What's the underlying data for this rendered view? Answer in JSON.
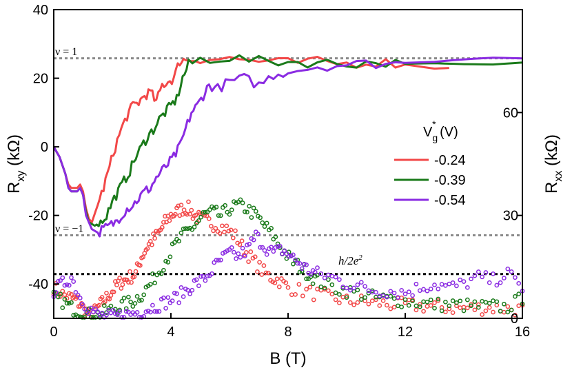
{
  "chart_data": {
    "type": "line+scatter",
    "xlabel": "B (T)",
    "xlim": [
      0,
      16
    ],
    "xticks": [
      "0",
      "4",
      "8",
      "12",
      "16"
    ],
    "ylabel_left": "Rxy (kΩ)",
    "ylabel_left_main": "R",
    "ylabel_left_sub": "xy",
    "ylabel_left_unit": " (kΩ)",
    "ylim_left": [
      -50,
      40
    ],
    "yticks_left": [
      "-40",
      "-20",
      "0",
      "20",
      "40"
    ],
    "ylabel_right": "Rxx (kΩ)",
    "ylabel_right_main": "R",
    "ylabel_right_sub": "xx",
    "ylabel_right_unit": " (kΩ)",
    "ylim_right": [
      0,
      90
    ],
    "yticks_right": [
      "0",
      "30",
      "60"
    ],
    "legend": {
      "title": "Vg* (V)",
      "title_main": "V",
      "title_sub": "g",
      "title_sup": "*",
      "title_unit": " (V)",
      "position": "right-center"
    },
    "annotations": {
      "nu_plus": "ν = 1",
      "nu_minus": "ν = −1",
      "h2e2_main": "h/2e",
      "h2e2_sup": "2"
    },
    "reference_lines": [
      {
        "label": "ν = 1",
        "axis": "left",
        "y": 25.8,
        "color": "#8a8a8a"
      },
      {
        "label": "ν = −1",
        "axis": "left",
        "y": -25.8,
        "color": "#8a8a8a"
      },
      {
        "label": "h/2e2",
        "axis": "right",
        "y": 12.9,
        "color": "#000000"
      }
    ],
    "series": [
      {
        "name": "-0.24",
        "color": "#f24848",
        "rxy_line": {
          "x": [
            0,
            0.2,
            0.4,
            0.5,
            0.6,
            0.8,
            0.9,
            1.0,
            1.1,
            1.2,
            1.3,
            1.5,
            1.7,
            1.9,
            2.1,
            2.3,
            2.5,
            2.7,
            2.9,
            3.1,
            3.3,
            3.5,
            3.7,
            3.9,
            4.1,
            4.3,
            4.5,
            5,
            6,
            7,
            8,
            9,
            10,
            11,
            12,
            13,
            13.5
          ],
          "y": [
            0,
            -3,
            -8,
            -11,
            -12,
            -12,
            -11,
            -13,
            -18,
            -21,
            -22,
            -17,
            -12,
            -6,
            0,
            5,
            9,
            12,
            13,
            15,
            16,
            13,
            18,
            19,
            20,
            25,
            25.5,
            25.7,
            25.8,
            25,
            24.5,
            24.8,
            24.2,
            24.8,
            24,
            22.8,
            23
          ]
        },
        "rxx_points": {
          "x": [
            0,
            0.3,
            0.6,
            0.8,
            1.0,
            1.2,
            1.4,
            1.6,
            1.8,
            2.0,
            2.2,
            2.4,
            2.6,
            2.8,
            3.0,
            3.2,
            3.4,
            3.6,
            3.8,
            4.0,
            4.2,
            4.4,
            4.6,
            4.8,
            5.0,
            5.3,
            5.6,
            5.9,
            6.2,
            6.5,
            6.8,
            7.1,
            7.4,
            7.7,
            8.0,
            8.5,
            9,
            9.5,
            10,
            10.5,
            11,
            11.5,
            12,
            12.5,
            13,
            13.5,
            14,
            14.5,
            15,
            15.5,
            16
          ],
          "y": [
            9,
            7,
            6,
            5,
            3,
            1,
            2,
            4,
            6,
            8,
            10,
            11,
            12,
            13,
            18,
            21,
            23,
            25,
            28,
            30,
            31,
            32,
            32,
            30,
            29,
            28,
            27,
            26,
            24,
            20,
            17,
            14,
            12,
            11,
            9,
            8,
            7,
            6,
            5,
            5,
            4.5,
            4,
            4,
            3.5,
            3.5,
            3,
            3,
            3,
            3,
            2.8,
            2.5
          ]
        }
      },
      {
        "name": "-0.39",
        "color": "#1a7a1a",
        "rxy_line": {
          "x": [
            0,
            0.2,
            0.4,
            0.5,
            0.6,
            0.8,
            0.9,
            1.0,
            1.1,
            1.2,
            1.4,
            1.6,
            1.8,
            2.0,
            2.2,
            2.4,
            2.6,
            2.8,
            3.0,
            3.2,
            3.4,
            3.6,
            3.8,
            4.0,
            4.2,
            4.4,
            4.6,
            5,
            6,
            7,
            8,
            9,
            10,
            11,
            12,
            13,
            14,
            15,
            16
          ],
          "y": [
            0,
            -3,
            -8,
            -12,
            -13,
            -13,
            -12,
            -14,
            -19,
            -22,
            -23,
            -22,
            -20,
            -16,
            -13,
            -10,
            -7,
            -3,
            0,
            3,
            5,
            8,
            10,
            12,
            14,
            20,
            24,
            25.5,
            26,
            25,
            24.8,
            24.5,
            24.3,
            24.6,
            24.2,
            24.4,
            24.1,
            24,
            24.6
          ]
        },
        "rxx_points": {
          "x": [
            0,
            0.3,
            0.6,
            0.9,
            1.2,
            1.5,
            1.8,
            2.1,
            2.4,
            2.7,
            3.0,
            3.3,
            3.6,
            3.9,
            4.2,
            4.5,
            4.8,
            5.1,
            5.4,
            5.7,
            6.0,
            6.3,
            6.6,
            6.9,
            7.2,
            7.5,
            7.8,
            8.1,
            8.4,
            8.7,
            9.0,
            9.5,
            10,
            10.5,
            11,
            11.5,
            12,
            12.5,
            13,
            13.5,
            14,
            14.5,
            15,
            15.5,
            16
          ],
          "y": [
            6,
            5,
            3,
            2,
            1,
            1,
            2,
            3,
            4,
            5,
            7,
            10,
            14,
            18,
            22,
            25,
            27,
            30,
            31,
            30,
            32,
            33,
            32,
            30,
            27,
            24,
            20,
            17,
            15,
            13,
            11,
            9,
            8,
            7,
            6,
            5.5,
            5,
            4.5,
            4,
            4,
            3.8,
            3.5,
            3.5,
            3.2,
            6
          ]
        }
      },
      {
        "name": "-0.54",
        "color": "#8a2be2",
        "rxy_line": {
          "x": [
            0,
            0.2,
            0.4,
            0.5,
            0.6,
            0.8,
            0.9,
            1.0,
            1.1,
            1.3,
            1.5,
            1.7,
            1.9,
            2.1,
            2.3,
            2.5,
            2.7,
            2.9,
            3.1,
            3.3,
            3.5,
            3.7,
            3.9,
            4.1,
            4.3,
            4.5,
            4.7,
            4.9,
            5.1,
            5.3,
            5.6,
            6.0,
            6.5,
            7.0,
            7.5,
            8,
            9,
            10,
            11,
            12,
            13,
            14,
            15,
            16
          ],
          "y": [
            0,
            -3,
            -8,
            -12,
            -13,
            -13,
            -12,
            -14,
            -20,
            -24,
            -25,
            -24,
            -23,
            -22,
            -20,
            -18,
            -17,
            -15,
            -13,
            -12,
            -9,
            -7,
            -5,
            -3,
            0,
            5,
            10,
            12,
            15,
            18,
            17,
            19,
            20,
            18,
            21,
            22,
            23.5,
            24,
            24.3,
            24.5,
            24.8,
            25.5,
            26,
            25.8
          ]
        },
        "rxx_points": {
          "x": [
            0,
            0.3,
            0.6,
            0.9,
            1.2,
            1.5,
            1.8,
            2.1,
            2.4,
            2.7,
            3.0,
            3.3,
            3.6,
            3.9,
            4.2,
            4.5,
            4.8,
            5.1,
            5.4,
            5.7,
            6.0,
            6.3,
            6.6,
            6.9,
            7.2,
            7.5,
            7.8,
            8.1,
            8.4,
            8.7,
            9.0,
            9.5,
            10,
            10.5,
            11,
            11.5,
            12,
            12.5,
            13,
            13.5,
            14,
            14.5,
            15,
            15.5,
            16
          ],
          "y": [
            8,
            10,
            12,
            6,
            3,
            1,
            0.5,
            0.5,
            1,
            1.5,
            2,
            3,
            4,
            5,
            6,
            8,
            10,
            11,
            14,
            17,
            19,
            18,
            20,
            24,
            21,
            19,
            20,
            18,
            16,
            14,
            13,
            12,
            10,
            9,
            8,
            8,
            7.5,
            9,
            10,
            9,
            10,
            12,
            11,
            13,
            9
          ]
        }
      }
    ]
  }
}
